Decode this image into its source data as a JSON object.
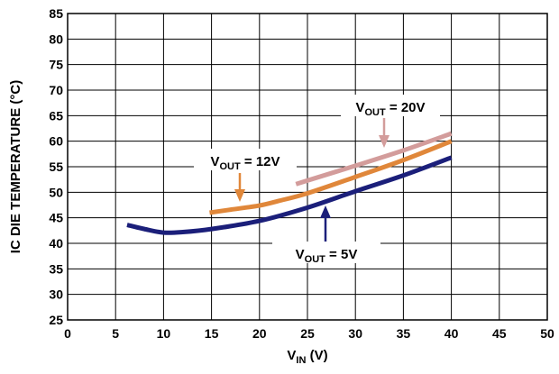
{
  "chart_data": {
    "type": "line",
    "xlabel": {
      "main": "V",
      "sub": "IN",
      "unit": " (V)"
    },
    "ylabel": "IC DIE TEMPERATURE (°C)",
    "xlim": [
      0,
      50
    ],
    "ylim": [
      25,
      85
    ],
    "x_ticks": [
      "0",
      "5",
      "10",
      "15",
      "20",
      "25",
      "30",
      "35",
      "40",
      "45",
      "50"
    ],
    "y_ticks": [
      "25",
      "30",
      "35",
      "40",
      "45",
      "50",
      "55",
      "60",
      "65",
      "70",
      "75",
      "80",
      "85"
    ],
    "grid": true,
    "series": [
      {
        "name": "5V",
        "color": "#1b1f7a",
        "points": [
          [
            6.2,
            43.6
          ],
          [
            8,
            42.8
          ],
          [
            10,
            42.1
          ],
          [
            12,
            42.2
          ],
          [
            15,
            42.8
          ],
          [
            20,
            44.4
          ],
          [
            25,
            47.0
          ],
          [
            30,
            50.2
          ],
          [
            35,
            53.3
          ],
          [
            40,
            56.8
          ]
        ]
      },
      {
        "name": "12V",
        "color": "#e0873a",
        "points": [
          [
            14.8,
            46.0
          ],
          [
            17,
            46.6
          ],
          [
            20,
            47.4
          ],
          [
            22,
            48.3
          ],
          [
            25,
            49.8
          ],
          [
            30,
            53.0
          ],
          [
            35,
            56.3
          ],
          [
            40,
            60.0
          ]
        ]
      },
      {
        "name": "20V",
        "color": "#d39c9b",
        "points": [
          [
            23.8,
            51.6
          ],
          [
            25,
            52.3
          ],
          [
            30,
            55.2
          ],
          [
            35,
            58.2
          ],
          [
            40,
            61.5
          ]
        ]
      }
    ],
    "annotations": [
      {
        "id": "5v",
        "prefix": "V",
        "sub": "OUT",
        "text": " = 5V",
        "pointer_color": "#1b1f7a"
      },
      {
        "id": "12v",
        "prefix": "V",
        "sub": "OUT",
        "text": " = 12V",
        "pointer_color": "#e0873a"
      },
      {
        "id": "20v",
        "prefix": "V",
        "sub": "OUT",
        "text": " = 20V",
        "pointer_color": "#d39c9b"
      }
    ]
  }
}
